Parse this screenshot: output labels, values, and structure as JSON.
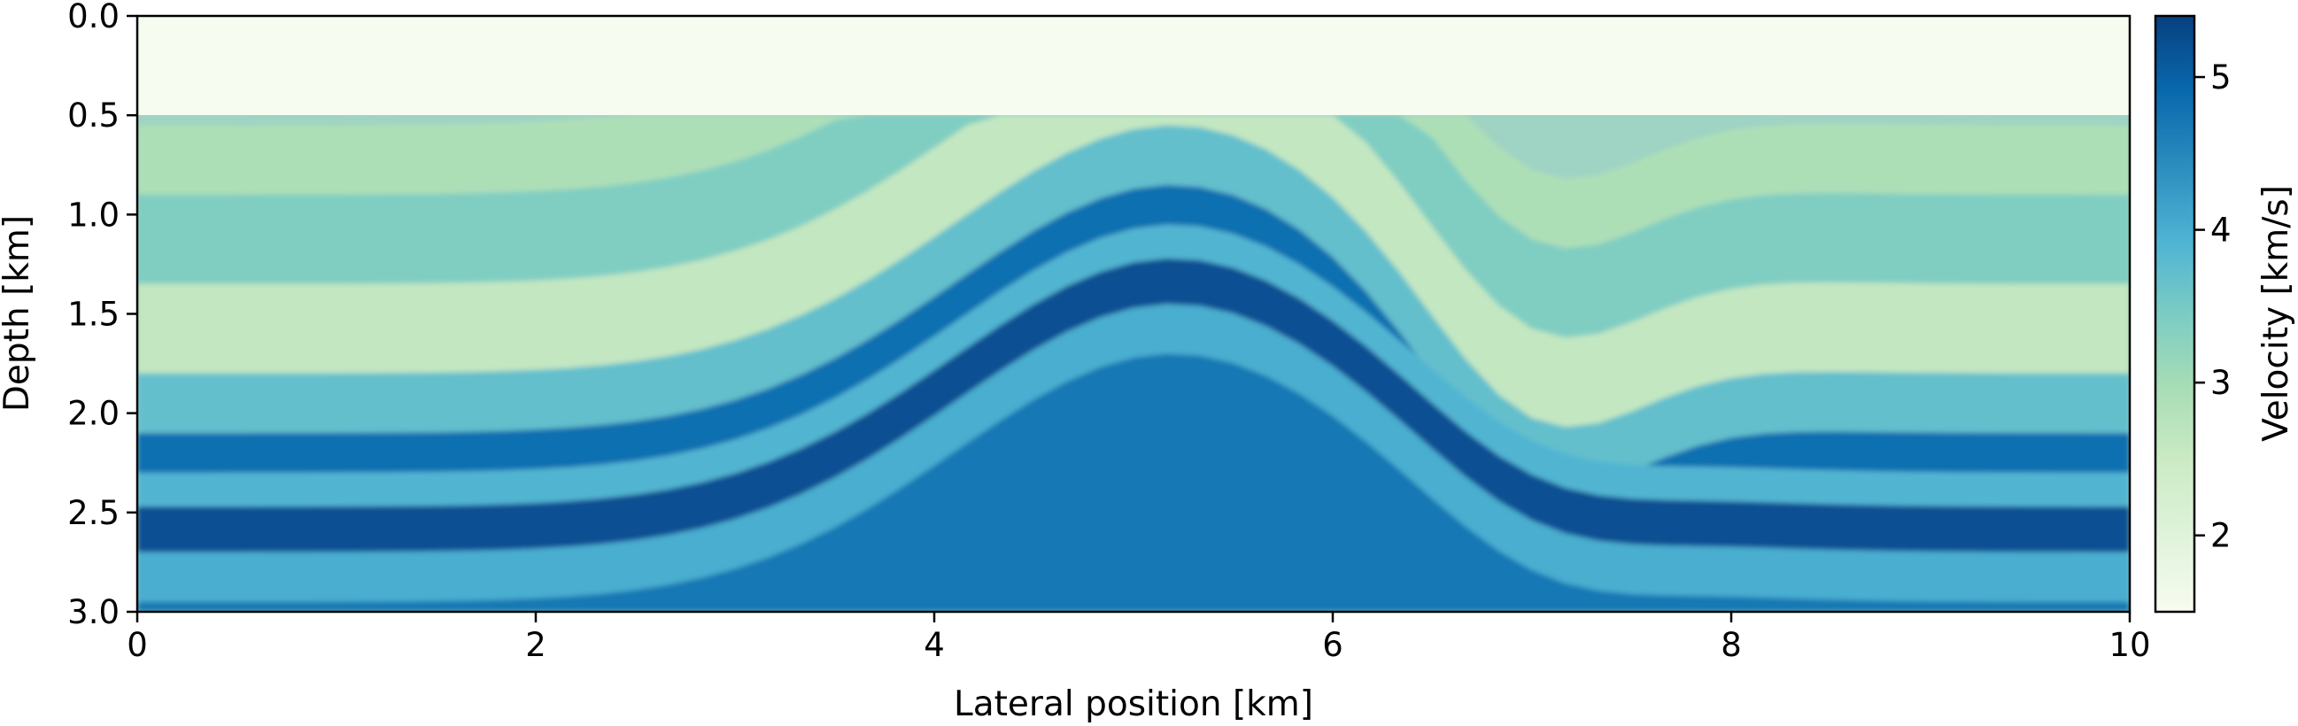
{
  "chart_data": {
    "type": "heatmap",
    "title": "",
    "xlabel": "Lateral position [km]",
    "ylabel": "Depth [km]",
    "xlim": [
      0,
      10
    ],
    "ylim": [
      0,
      3.0
    ],
    "y_inverted": true,
    "xticks": [
      "0",
      "2",
      "4",
      "6",
      "8",
      "10"
    ],
    "xtick_values": [
      0,
      2,
      4,
      6,
      8,
      10
    ],
    "yticks": [
      "0.0",
      "0.5",
      "1.0",
      "1.5",
      "2.0",
      "2.5",
      "3.0"
    ],
    "ytick_values": [
      0.0,
      0.5,
      1.0,
      1.5,
      2.0,
      2.5,
      3.0
    ],
    "colormap": "GnBu",
    "water_depth_km": 0.5,
    "water_velocity_kms": 1.5,
    "colorbar": {
      "label": "Velocity [km/s]",
      "range": [
        1.5,
        5.4
      ],
      "ticks": [
        "2",
        "3",
        "4",
        "5"
      ],
      "tick_values": [
        2,
        3,
        4,
        5
      ],
      "colors": [
        "#f7fcf0",
        "#e0f3db",
        "#ccebc5",
        "#a8ddb5",
        "#7bccc4",
        "#4eb3d3",
        "#2b8cbe",
        "#0868ac",
        "#084081"
      ]
    },
    "layers": [
      {
        "depth_left_km": 0.55,
        "velocity_kms": 2.9
      },
      {
        "depth_left_km": 0.9,
        "velocity_kms": 3.4
      },
      {
        "depth_left_km": 1.35,
        "velocity_kms": 2.6
      },
      {
        "depth_left_km": 1.8,
        "velocity_kms": 3.7
      },
      {
        "depth_left_km": 2.1,
        "velocity_kms": 4.8
      },
      {
        "depth_left_km": 2.3,
        "velocity_kms": 3.9
      },
      {
        "depth_left_km": 2.47,
        "velocity_kms": 5.2
      },
      {
        "depth_left_km": 2.7,
        "velocity_kms": 4.0
      },
      {
        "depth_left_km": 2.95,
        "velocity_kms": 4.7
      }
    ]
  }
}
